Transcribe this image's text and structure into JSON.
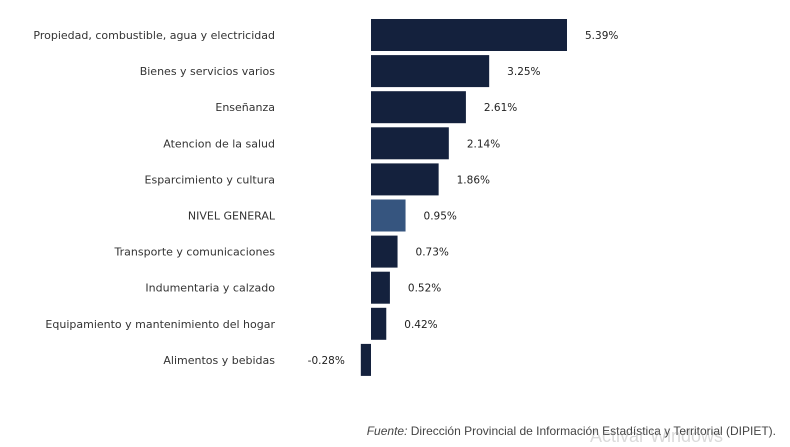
{
  "chart_data": {
    "type": "bar",
    "orientation": "horizontal",
    "categories": [
      "Propiedad, combustible, agua y electricidad",
      "Bienes y servicios varios",
      "Enseñanza",
      "Atencion de la salud",
      "Esparcimiento y cultura",
      "NIVEL GENERAL",
      "Transporte y comunicaciones",
      "Indumentaria y calzado",
      "Equipamiento y mantenimiento del hogar",
      "Alimentos y bebidas"
    ],
    "values": [
      5.39,
      3.25,
      2.61,
      2.14,
      1.86,
      0.95,
      0.73,
      0.52,
      0.42,
      -0.28
    ],
    "labels": [
      "5.39%",
      "3.25%",
      "2.61%",
      "2.14%",
      "1.86%",
      "0.95%",
      "0.73%",
      "0.52%",
      "0.42%",
      "-0.28%"
    ],
    "highlight_index": 5,
    "unit": "%",
    "grid": false
  },
  "colors": {
    "bar": "#14213d",
    "highlight": "#36557f"
  },
  "source": {
    "label": "Fuente:",
    "text": " Dirección Provincial de Información Estadística y Territorial (DIPIET)."
  },
  "watermark": "Activar Windows"
}
